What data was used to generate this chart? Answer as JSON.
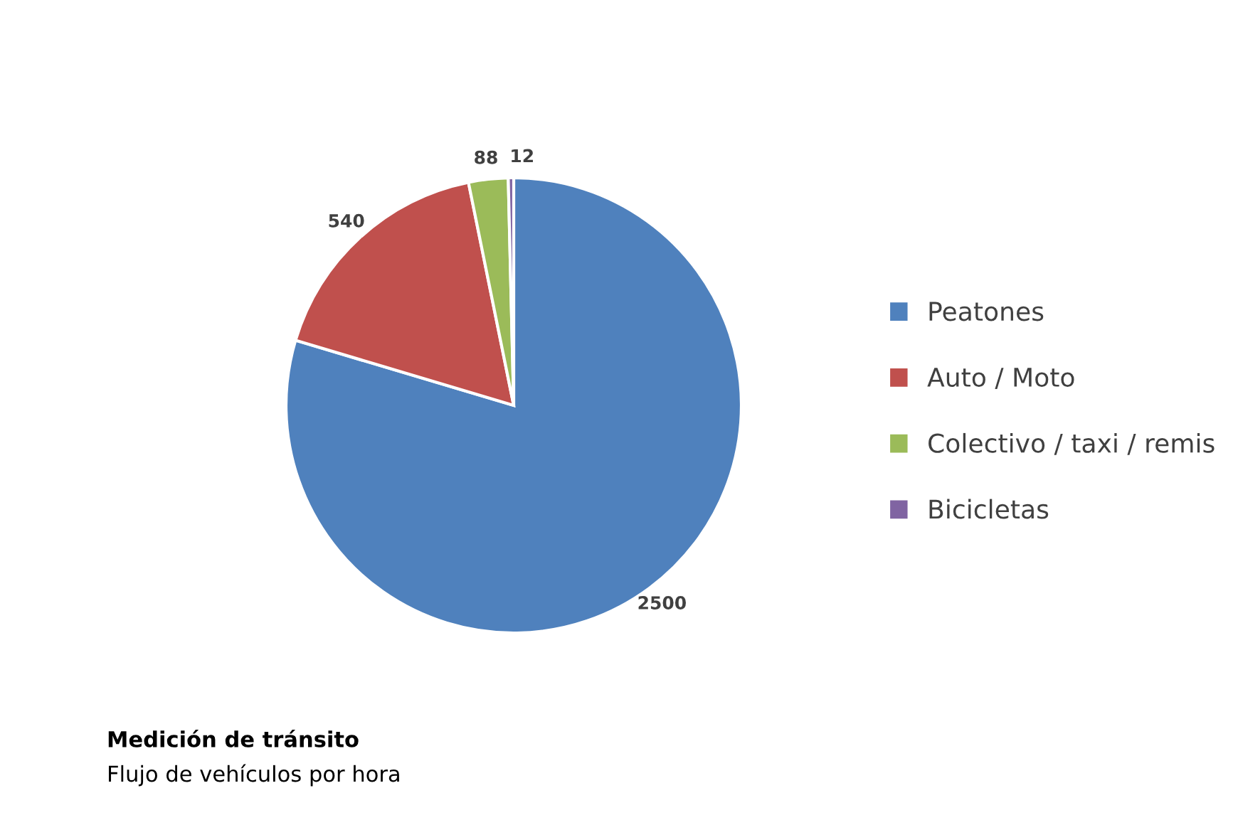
{
  "chart_data": {
    "type": "pie",
    "title": "Medición de tránsito",
    "subtitle": "Flujo de vehículos por hora",
    "categories": [
      "Peatones",
      "Auto / Moto",
      "Colectivo / taxi / remis",
      "Bicicletas"
    ],
    "values": [
      2500,
      540,
      88,
      12
    ],
    "colors": [
      "#4f81bd",
      "#c0504d",
      "#9bbb59",
      "#8064a2"
    ],
    "data_labels": true,
    "legend": "right"
  }
}
